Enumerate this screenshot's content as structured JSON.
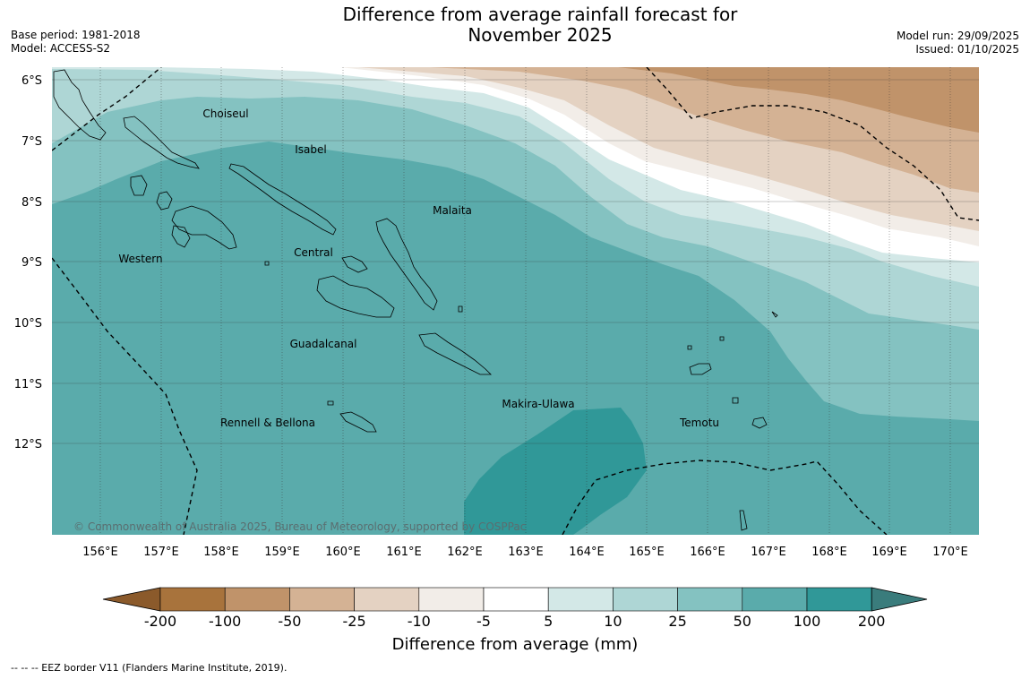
{
  "title_line1": "Difference from average rainfall forecast for",
  "title_line2": "November 2025",
  "base_period": "Base period: 1981-2018",
  "model": "Model: ACCESS-S2",
  "model_run": "Model run: 29/09/2025",
  "issued": "Issued: 01/10/2025",
  "lat_labels": [
    "6°S",
    "7°S",
    "8°S",
    "9°S",
    "10°S",
    "11°S",
    "12°S"
  ],
  "lon_labels": [
    "156°E",
    "157°E",
    "158°E",
    "159°E",
    "160°E",
    "161°E",
    "162°E",
    "163°E",
    "164°E",
    "165°E",
    "166°E",
    "167°E",
    "168°E",
    "169°E",
    "170°E"
  ],
  "places": [
    {
      "name": "Choiseul"
    },
    {
      "name": "Isabel"
    },
    {
      "name": "Malaita"
    },
    {
      "name": "Western"
    },
    {
      "name": "Central"
    },
    {
      "name": "Guadalcanal"
    },
    {
      "name": "Makira-Ulawa"
    },
    {
      "name": "Rennell & Bellona"
    },
    {
      "name": "Temotu"
    }
  ],
  "copyright": "© Commonwealth of Australia 2025, Bureau of Meteorology, supported by COSPPac",
  "colorbar": {
    "ticks": [
      "-200",
      "-100",
      "-50",
      "-25",
      "-10",
      "-5",
      "5",
      "10",
      "25",
      "50",
      "100",
      "200"
    ],
    "colors": [
      "#a8733c",
      "#c0936a",
      "#d4b294",
      "#e4d2c2",
      "#f2ede8",
      "#ffffff",
      "#d3e8e7",
      "#aed6d5",
      "#84c2c1",
      "#5aabab",
      "#309898"
    ],
    "low_extend": "#8b5a2b",
    "high_extend": "#3a7c7c",
    "label": "Difference from average (mm)"
  },
  "footnote": "--  --  -- EEZ border V11 (Flanders Marine Institute, 2019)."
}
